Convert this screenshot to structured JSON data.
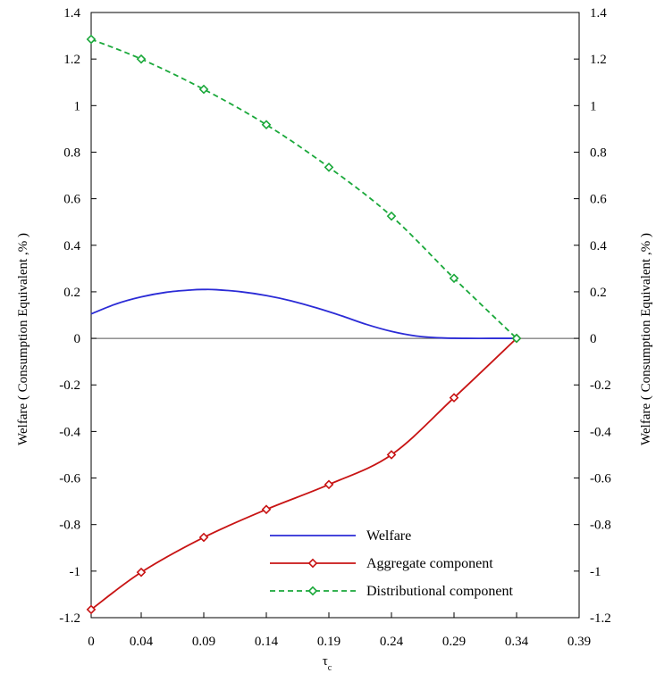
{
  "chart_data": {
    "type": "line",
    "title": "",
    "xlabel": "τ",
    "xlabel_sub": "c",
    "ylabel_left": "Welfare ( Consumption Equivalent ,% )",
    "ylabel_right": "Welfare ( Consumption Equivalent ,% )",
    "xlim": [
      0,
      0.39
    ],
    "ylim": [
      -1.2,
      1.4
    ],
    "x_ticks": [
      0,
      0.04,
      0.09,
      0.14,
      0.19,
      0.24,
      0.29,
      0.34,
      0.39
    ],
    "x_tick_labels": [
      "0",
      "0.04",
      "0.09",
      "0.14",
      "0.19",
      "0.24",
      "0.29",
      "0.34",
      "0.39"
    ],
    "y_ticks": [
      1.4,
      1.2,
      1,
      0.8,
      0.6,
      0.4,
      0.2,
      0,
      -0.2,
      -0.4,
      -0.6,
      -0.8,
      -1,
      -1.2
    ],
    "y_tick_labels": [
      "1.4",
      "1.2",
      "1",
      "0.8",
      "0.6",
      "0.4",
      "0.2",
      "0",
      "-0.2",
      "-0.4",
      "-0.6",
      "-0.8",
      "-1",
      "-1.2"
    ],
    "legend_position": "bottom-right",
    "grid": false,
    "zero_line": true,
    "series": [
      {
        "name": "Welfare",
        "color": "#2b2bd6",
        "style": "solid",
        "markers": false,
        "x": [
          0,
          0.02,
          0.04,
          0.06,
          0.08,
          0.09,
          0.1,
          0.12,
          0.14,
          0.16,
          0.18,
          0.2,
          0.22,
          0.24,
          0.26,
          0.28,
          0.3,
          0.32,
          0.34
        ],
        "y": [
          0.105,
          0.148,
          0.178,
          0.198,
          0.208,
          0.21,
          0.209,
          0.2,
          0.184,
          0.161,
          0.131,
          0.097,
          0.06,
          0.03,
          0.01,
          0.002,
          0.0,
          0.0,
          0.0
        ]
      },
      {
        "name": "Aggregate component",
        "color": "#c81414",
        "style": "solid",
        "markers": true,
        "x": [
          0,
          0.04,
          0.09,
          0.14,
          0.19,
          0.24,
          0.29,
          0.34
        ],
        "y": [
          -1.165,
          -1.005,
          -0.855,
          -0.735,
          -0.628,
          -0.5,
          -0.255,
          0.0
        ]
      },
      {
        "name": "Distributional component",
        "color": "#1aa83a",
        "style": "dashed",
        "markers": true,
        "x": [
          0,
          0.04,
          0.09,
          0.14,
          0.19,
          0.24,
          0.29,
          0.34
        ],
        "y": [
          1.285,
          1.2,
          1.07,
          0.918,
          0.735,
          0.525,
          0.258,
          0.0
        ]
      }
    ]
  }
}
